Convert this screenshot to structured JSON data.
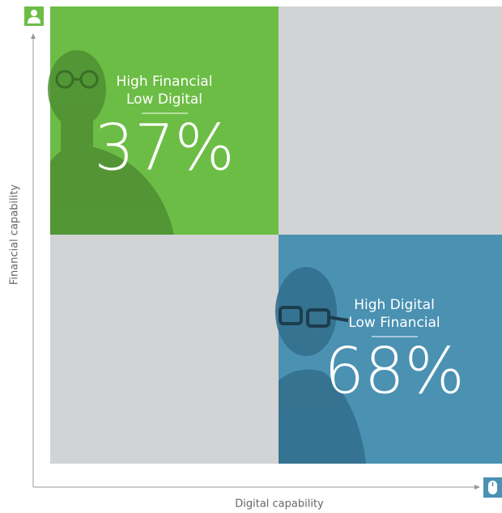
{
  "axes": {
    "y_label": "Financial capability",
    "x_label": "Digital capability"
  },
  "quadrants": [
    {
      "line1": "High Financial",
      "line2": "Low Digital",
      "percent": "37%"
    },
    {
      "line1": "High Digital",
      "line2": "Low Financial",
      "percent": "68%"
    }
  ]
}
